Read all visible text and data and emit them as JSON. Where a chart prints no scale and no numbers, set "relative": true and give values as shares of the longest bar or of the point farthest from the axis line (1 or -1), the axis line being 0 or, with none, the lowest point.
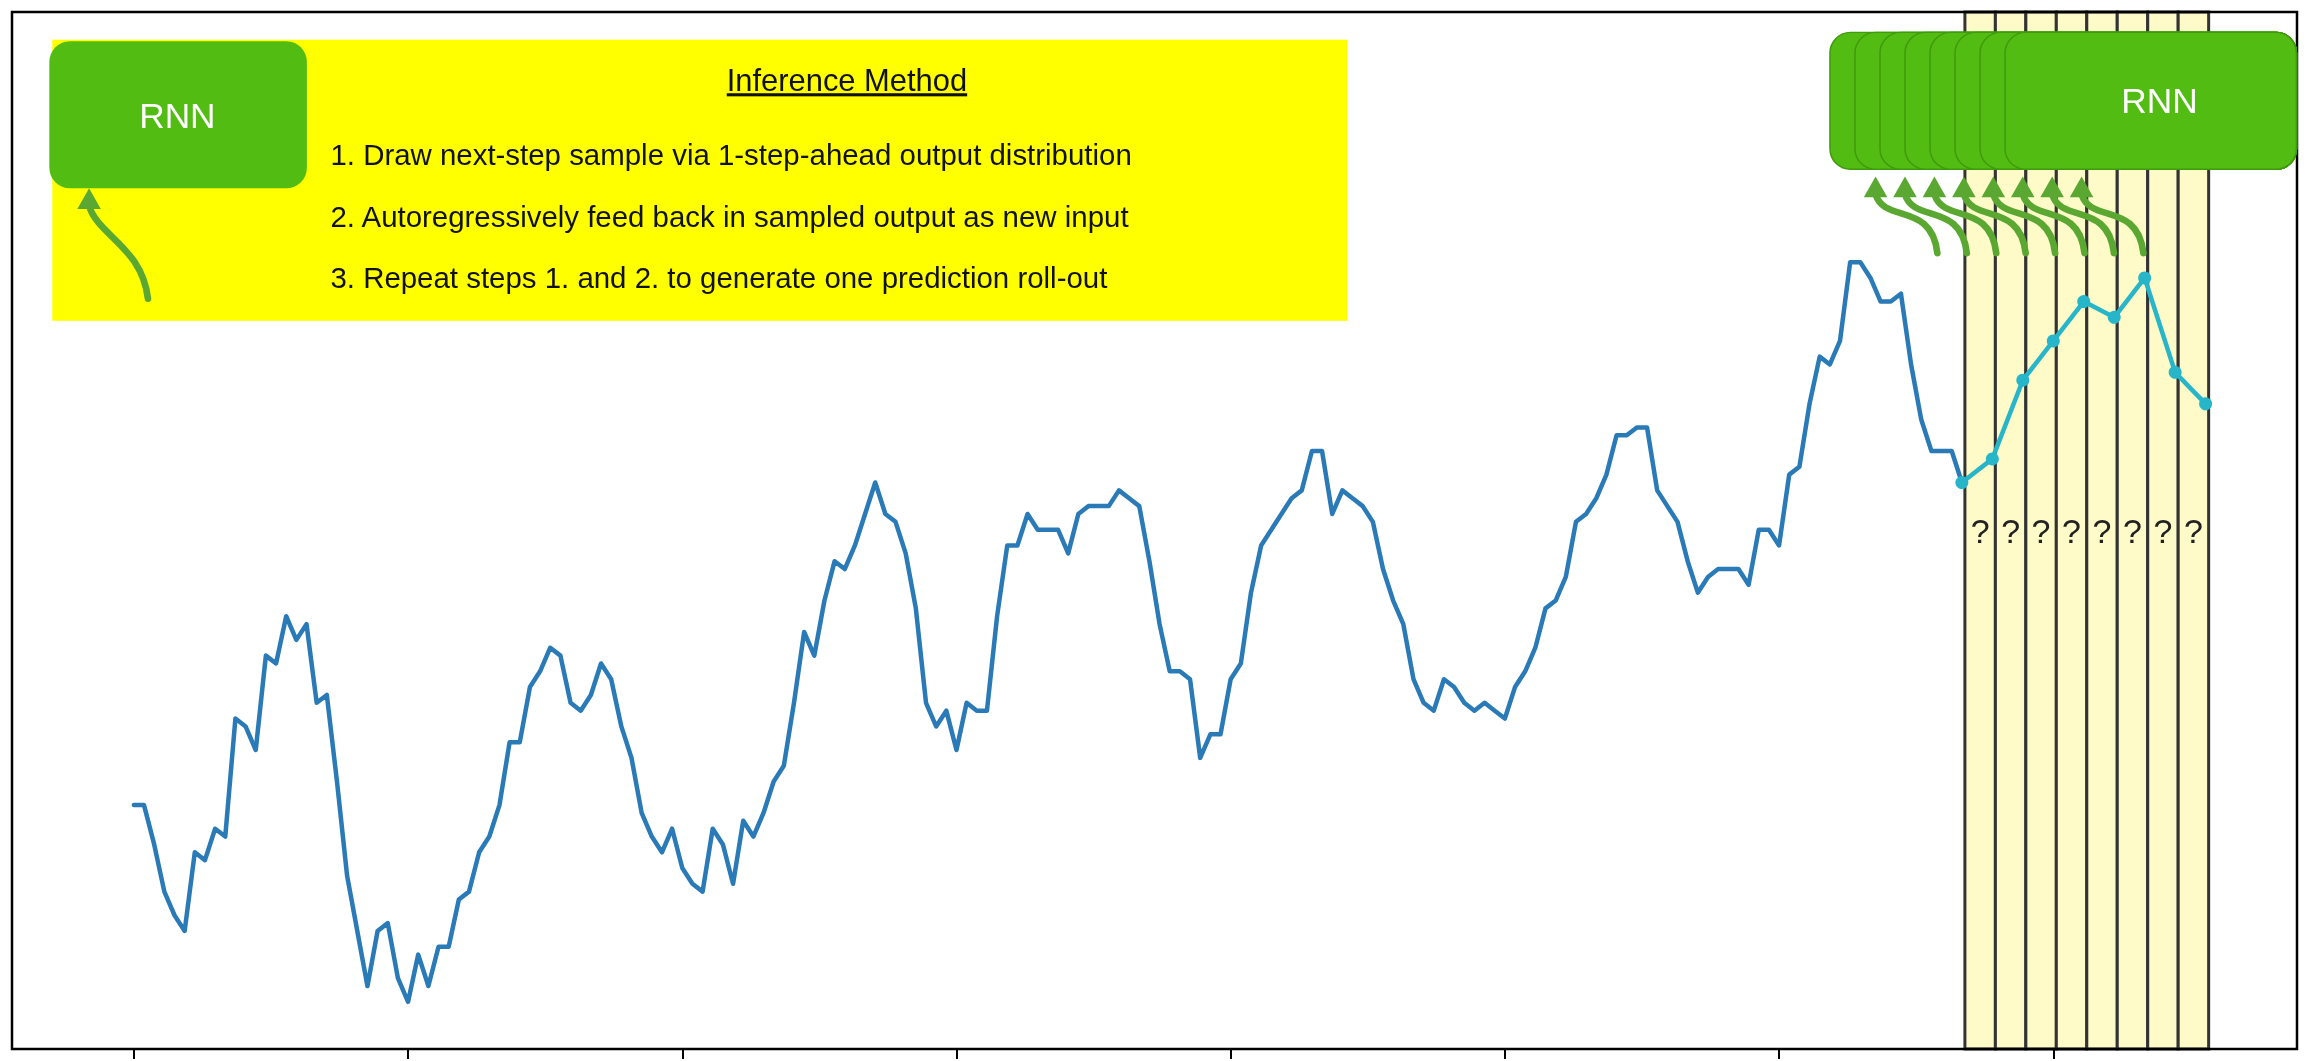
{
  "chart_data": {
    "type": "line",
    "title": "Inference Method",
    "relative": true,
    "marker": "none",
    "grid": false,
    "annotations": [
      "1. Draw next-step sample via 1-step-ahead output distribution",
      "2. Autoregressively feed back in sampled output as new input",
      "3. Repeat steps 1. and 2. to generate one prediction roll-out",
      "RNN",
      "RNN",
      "?",
      "?",
      "?",
      "?",
      "?",
      "?",
      "?",
      "?"
    ],
    "categories": [
      null,
      null,
      null,
      null,
      null,
      null,
      null,
      null,
      null,
      null,
      null,
      null,
      null,
      null,
      null,
      null,
      null,
      null,
      null,
      null,
      null,
      null,
      null,
      null,
      null,
      null,
      null,
      null,
      null,
      null,
      null,
      null,
      null,
      null,
      null,
      null,
      null,
      null,
      null,
      null,
      null,
      null,
      null,
      null,
      null,
      null,
      null,
      null,
      null,
      null,
      null,
      null,
      null,
      null,
      null,
      null,
      null,
      null,
      null,
      null,
      null,
      null,
      null,
      null,
      null,
      null,
      null,
      null,
      null,
      null,
      null,
      null,
      null,
      null,
      null,
      null,
      null,
      null,
      null,
      null,
      null,
      null,
      null,
      null,
      null,
      null,
      null,
      null,
      null,
      null,
      null,
      null,
      null,
      null,
      null,
      null,
      null,
      null,
      null,
      null,
      null,
      null,
      null,
      null,
      null,
      null,
      null,
      null,
      null,
      null,
      null,
      null,
      null,
      null,
      null,
      null,
      null,
      null,
      null,
      null,
      null,
      null,
      null,
      null,
      null,
      null,
      null,
      null,
      null,
      null,
      null,
      null,
      null,
      null,
      null,
      null,
      null,
      null,
      null,
      null,
      null,
      null,
      null,
      null,
      null,
      null,
      null,
      null,
      null,
      null,
      null,
      null,
      null,
      null,
      null,
      null,
      null,
      null,
      null,
      null,
      null,
      null,
      null,
      null,
      null,
      null,
      null,
      null,
      null,
      null,
      null,
      null,
      null,
      null,
      null,
      null,
      null,
      null,
      null,
      null,
      null,
      null,
      null,
      null,
      null,
      null,
      null,
      null,
      null,
      null,
      null,
      null,
      null,
      null,
      null,
      null,
      null,
      null,
      null,
      null,
      null,
      null,
      null,
      null,
      null,
      null,
      null,
      null,
      null,
      null,
      null,
      null,
      null,
      null,
      null,
      null,
      null,
      null,
      null,
      null,
      null,
      null,
      null,
      null,
      null,
      null
    ],
    "series": [
      {
        "color": "#2a7ab8",
        "values": [
          null,
          null,
          null,
          null,
          null,
          null,
          null,
          null,
          null,
          null,
          null,
          null,
          0.31,
          0.31,
          0.26,
          0.2,
          0.17,
          0.15,
          0.25,
          0.24,
          0.28,
          0.27,
          0.42,
          0.41,
          0.38,
          0.5,
          0.49,
          0.55,
          0.52,
          0.54,
          0.44,
          0.45,
          0.34,
          0.22,
          0.15,
          0.08,
          0.15,
          0.16,
          0.09,
          0.06,
          0.12,
          0.08,
          0.13,
          0.13,
          0.19,
          0.2,
          0.25,
          0.27,
          0.31,
          0.39,
          0.39,
          0.46,
          0.48,
          0.51,
          0.5,
          0.44,
          0.43,
          0.45,
          0.49,
          0.47,
          0.41,
          0.37,
          0.3,
          0.27,
          0.25,
          0.28,
          0.23,
          0.21,
          0.2,
          0.28,
          0.26,
          0.21,
          0.29,
          0.27,
          0.3,
          0.34,
          0.36,
          0.44,
          0.53,
          0.5,
          0.57,
          0.62,
          0.61,
          0.64,
          0.68,
          0.72,
          0.68,
          0.67,
          0.63,
          0.56,
          0.44,
          0.41,
          0.43,
          0.38,
          0.44,
          0.43,
          0.43,
          0.55,
          0.64,
          0.64,
          0.68,
          0.66,
          0.66,
          0.66,
          0.63,
          0.68,
          0.69,
          0.69,
          0.69,
          0.71,
          0.7,
          0.69,
          0.62,
          0.54,
          0.48,
          0.48,
          0.47,
          0.37,
          0.4,
          0.4,
          0.47,
          0.49,
          0.58,
          0.64,
          0.66,
          0.68,
          0.7,
          0.71,
          0.76,
          0.76,
          0.68,
          0.71,
          0.7,
          0.69,
          0.67,
          0.61,
          0.57,
          0.54,
          0.47,
          0.44,
          0.43,
          0.47,
          0.46,
          0.44,
          0.43,
          0.44,
          0.43,
          0.42,
          0.46,
          0.48,
          0.51,
          0.56,
          0.57,
          0.6,
          0.67,
          0.68,
          0.7,
          0.73,
          0.78,
          0.78,
          0.79,
          0.79,
          0.71,
          0.69,
          0.67,
          0.62,
          0.58,
          0.6,
          0.61,
          0.61,
          0.61,
          0.59,
          0.66,
          0.66,
          0.64,
          0.73,
          0.74,
          0.82,
          0.88,
          0.87,
          0.9,
          1.0,
          1.0,
          0.98,
          0.95,
          0.95,
          0.96,
          0.87,
          0.8,
          0.76,
          0.76,
          0.76,
          0.72,
          null,
          null,
          null,
          null,
          null,
          null,
          null,
          null,
          null,
          null,
          null,
          null,
          null,
          null,
          null,
          null,
          null,
          null,
          null,
          null,
          null,
          null,
          null,
          null,
          null,
          null,
          null,
          null,
          null,
          null,
          null,
          null,
          null
        ]
      },
      {
        "color": "#26b5c9",
        "marker": "circle",
        "values": [
          null,
          null,
          null,
          null,
          null,
          null,
          null,
          null,
          null,
          null,
          null,
          null,
          null,
          null,
          null,
          null,
          null,
          null,
          null,
          null,
          null,
          null,
          null,
          null,
          null,
          null,
          null,
          null,
          null,
          null,
          null,
          null,
          null,
          null,
          null,
          null,
          null,
          null,
          null,
          null,
          null,
          null,
          null,
          null,
          null,
          null,
          null,
          null,
          null,
          null,
          null,
          null,
          null,
          null,
          null,
          null,
          null,
          null,
          null,
          null,
          null,
          null,
          null,
          null,
          null,
          null,
          null,
          null,
          null,
          null,
          null,
          null,
          null,
          null,
          null,
          null,
          null,
          null,
          null,
          null,
          null,
          null,
          null,
          null,
          null,
          null,
          null,
          null,
          null,
          null,
          null,
          null,
          null,
          null,
          null,
          null,
          null,
          null,
          null,
          null,
          null,
          null,
          null,
          null,
          null,
          null,
          null,
          null,
          null,
          null,
          null,
          null,
          null,
          null,
          null,
          null,
          null,
          null,
          null,
          null,
          null,
          null,
          null,
          null,
          null,
          null,
          null,
          null,
          null,
          null,
          null,
          null,
          null,
          null,
          null,
          null,
          null,
          null,
          null,
          null,
          null,
          null,
          null,
          null,
          null,
          null,
          null,
          null,
          null,
          null,
          null,
          null,
          null,
          null,
          null,
          null,
          null,
          null,
          null,
          null,
          null,
          null,
          null,
          null,
          null,
          null,
          null,
          null,
          null,
          null,
          null,
          null,
          null,
          null,
          null,
          null,
          null,
          null,
          null,
          null,
          null,
          null,
          null,
          null,
          null,
          null,
          null,
          null,
          null,
          null,
          null,
          null,
          0.72,
          null,
          null,
          0.75,
          null,
          null,
          0.85,
          null,
          null,
          0.9,
          null,
          null,
          0.95,
          null,
          null,
          0.93,
          null,
          null,
          0.98,
          null,
          null,
          0.86,
          null,
          null,
          0.82,
          null,
          null,
          null,
          null,
          null,
          null,
          null,
          null,
          null
        ]
      }
    ]
  }
}
